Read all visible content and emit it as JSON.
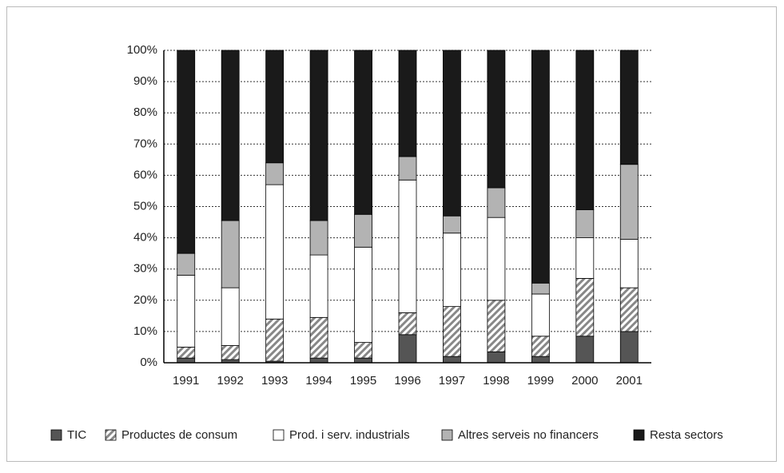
{
  "chart_data": {
    "type": "stacked_bar",
    "categories": [
      "1991",
      "1992",
      "1993",
      "1994",
      "1995",
      "1996",
      "1997",
      "1998",
      "1999",
      "2000",
      "2001"
    ],
    "series": [
      {
        "name": "TIC",
        "color": "#555555",
        "values": [
          1.5,
          1,
          0.5,
          1.5,
          1.5,
          9,
          2,
          3.5,
          2,
          8.5,
          10
        ]
      },
      {
        "name": "Productes de consum",
        "color": "#888888",
        "hatch": true,
        "values": [
          3.5,
          4.5,
          13.5,
          13,
          5,
          7,
          16,
          16.5,
          6.5,
          18.5,
          14
        ]
      },
      {
        "name": "Prod. i serv. industrials",
        "color": "#ffffff",
        "values": [
          23,
          18.5,
          43,
          20,
          30.5,
          42.5,
          23.5,
          26.5,
          13.5,
          13,
          15.5
        ]
      },
      {
        "name": "Altres serveis no financers",
        "color": "#b3b3b3",
        "values": [
          7,
          21.5,
          7,
          11,
          10.5,
          7.5,
          5.5,
          9.5,
          3.5,
          9,
          24
        ]
      },
      {
        "name": "Resta sectors",
        "color": "#1a1a1a",
        "values": [
          65,
          54.5,
          36,
          54.5,
          52.5,
          34,
          53,
          44,
          74.5,
          51,
          36.5
        ]
      }
    ],
    "ylim": [
      0,
      100
    ],
    "yticks": [
      {
        "value": 0,
        "label": "0%"
      },
      {
        "value": 10,
        "label": "10%"
      },
      {
        "value": 20,
        "label": "20%"
      },
      {
        "value": 30,
        "label": "30%"
      },
      {
        "value": 40,
        "label": "40%"
      },
      {
        "value": 50,
        "label": "50%"
      },
      {
        "value": 60,
        "label": "60%"
      },
      {
        "value": 70,
        "label": "70%"
      },
      {
        "value": 80,
        "label": "80%"
      },
      {
        "value": 90,
        "label": "90%"
      },
      {
        "value": 100,
        "label": "100%"
      }
    ],
    "grid": true,
    "legend": "bottom"
  }
}
